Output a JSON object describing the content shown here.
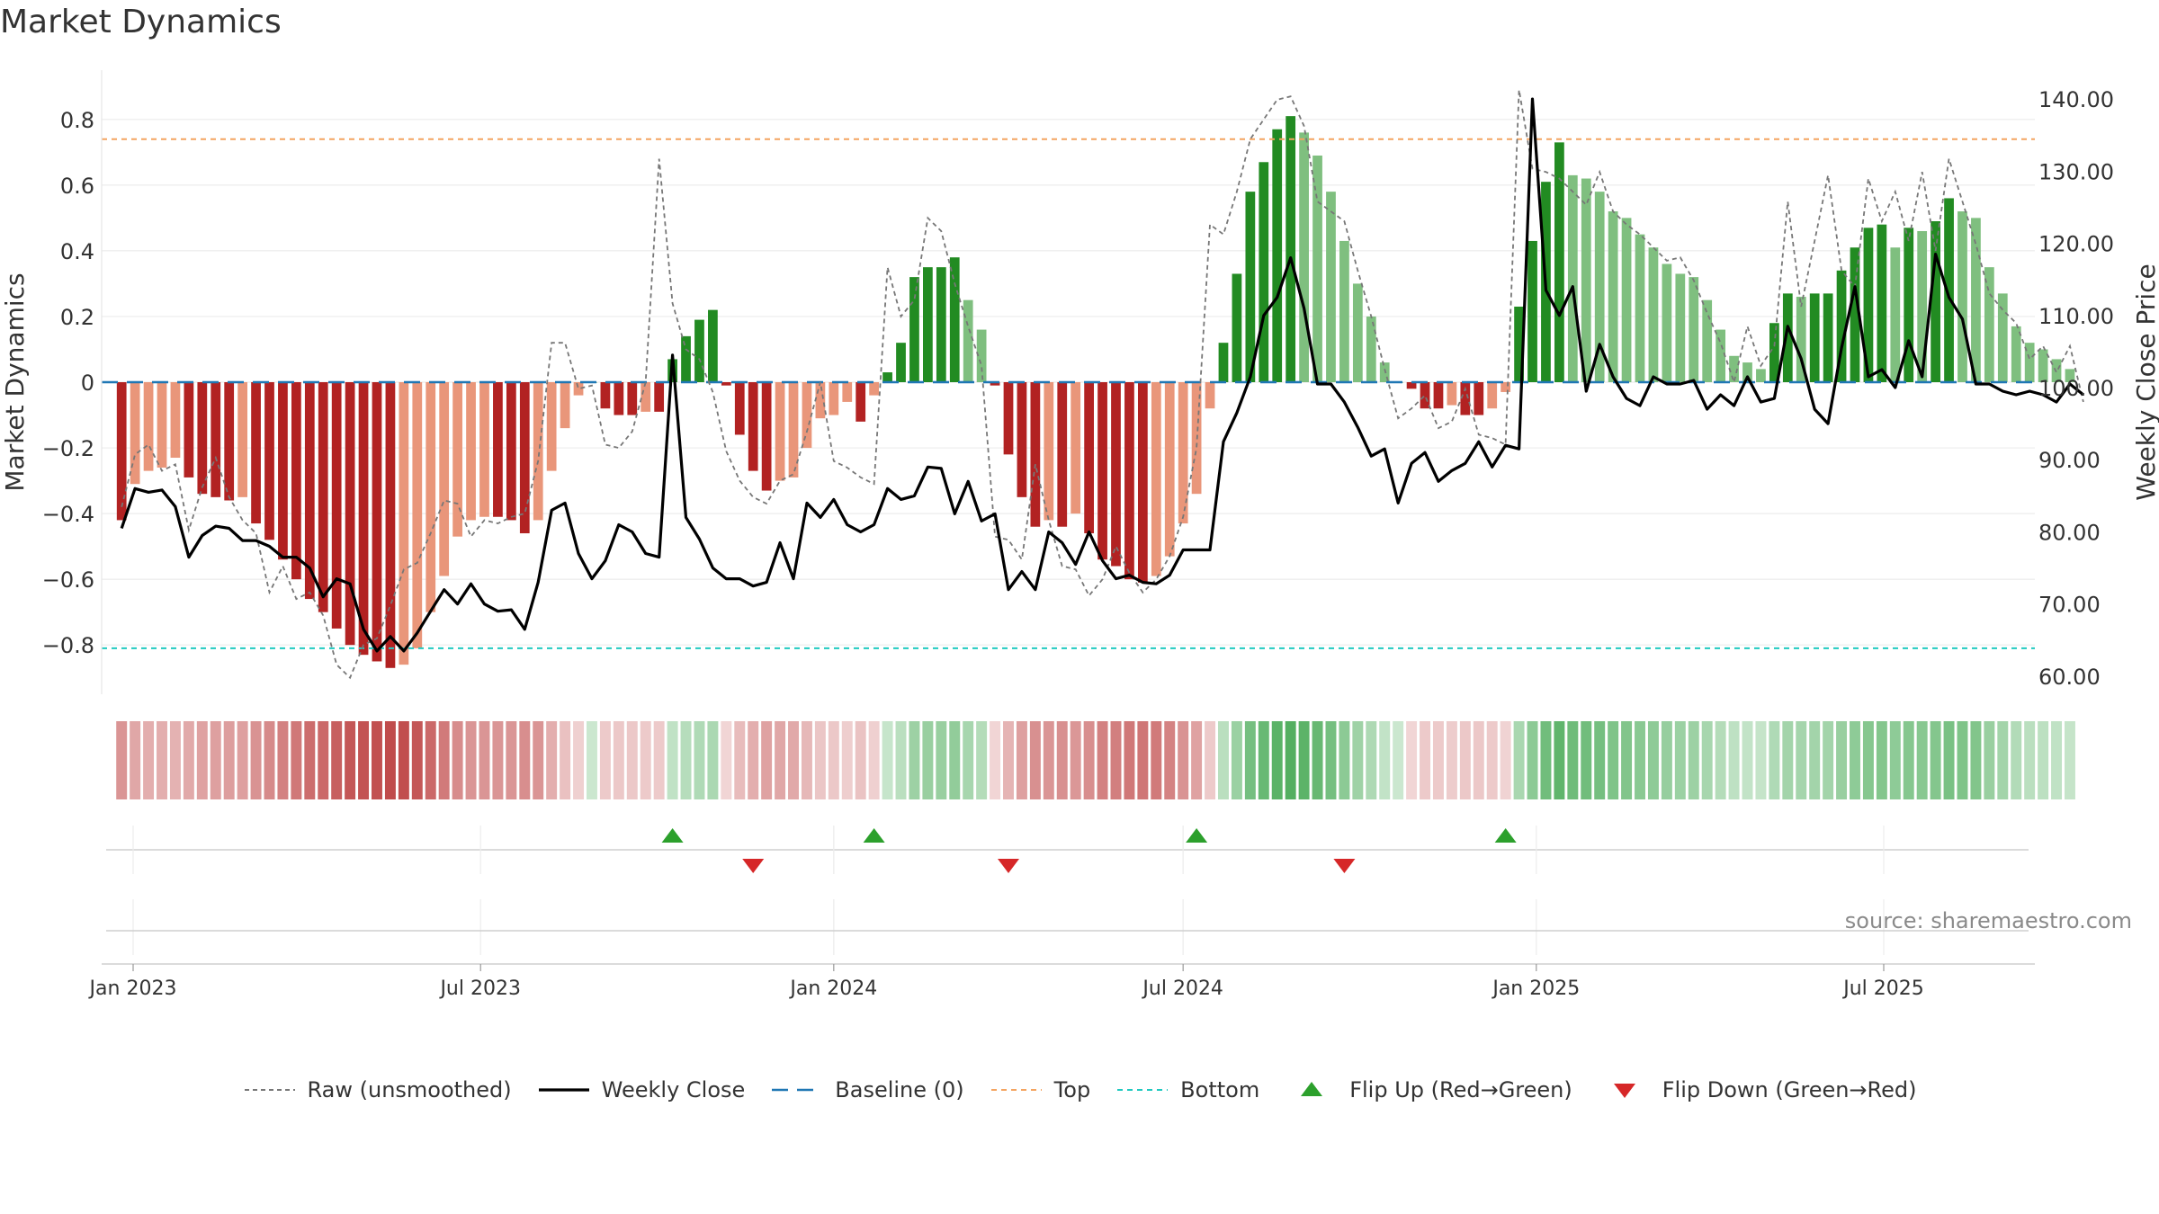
{
  "title": "Market Dynamics",
  "source": "source: sharemaestro.com",
  "chart_data": {
    "type": "bar",
    "title": "Market Dynamics",
    "ylabel": "Market Dynamics",
    "y2label": "Weekly Close Price",
    "ylim": [
      -0.95,
      0.95
    ],
    "y2lim": [
      57.5,
      144.0
    ],
    "yticks": [
      "0.8",
      "0.6",
      "0.4",
      "0.2",
      "0",
      "−0.2",
      "−0.4",
      "−0.6",
      "−0.8"
    ],
    "y2ticks": [
      "140.00",
      "130.00",
      "120.00",
      "110.00",
      "100.00",
      "90.00",
      "80.00",
      "70.00",
      "60.00"
    ],
    "xticks": [
      "Jan 2023",
      "Jul 2023",
      "Jan 2024",
      "Jul 2024",
      "Jan 2025",
      "Jul 2025"
    ],
    "top_line": 0.74,
    "bottom_line": -0.81,
    "baseline": 0,
    "start_date": "2022-12-26",
    "bar_values": [
      -0.42,
      -0.31,
      -0.27,
      -0.26,
      -0.23,
      -0.29,
      -0.34,
      -0.35,
      -0.36,
      -0.35,
      -0.43,
      -0.48,
      -0.54,
      -0.6,
      -0.66,
      -0.7,
      -0.75,
      -0.8,
      -0.83,
      -0.85,
      -0.87,
      -0.86,
      -0.81,
      -0.7,
      -0.59,
      -0.47,
      -0.42,
      -0.41,
      -0.41,
      -0.42,
      -0.46,
      -0.42,
      -0.27,
      -0.14,
      -0.04,
      0,
      -0.08,
      -0.1,
      -0.1,
      -0.09,
      -0.09,
      0.07,
      0.14,
      0.19,
      0.22,
      -0.01,
      -0.16,
      -0.27,
      -0.33,
      -0.3,
      -0.29,
      -0.2,
      -0.11,
      -0.1,
      -0.06,
      -0.12,
      -0.04,
      0.03,
      0.12,
      0.32,
      0.35,
      0.35,
      0.38,
      0.25,
      0.16,
      -0.01,
      -0.22,
      -0.35,
      -0.44,
      -0.42,
      -0.44,
      -0.4,
      -0.46,
      -0.54,
      -0.56,
      -0.6,
      -0.61,
      -0.59,
      -0.53,
      -0.43,
      -0.34,
      -0.08,
      0.12,
      0.33,
      0.58,
      0.67,
      0.77,
      0.81,
      0.76,
      0.69,
      0.58,
      0.43,
      0.3,
      0.2,
      0.06,
      0.0,
      -0.02,
      -0.08,
      -0.08,
      -0.07,
      -0.1,
      -0.1,
      -0.08,
      -0.03,
      0.23,
      0.43,
      0.61,
      0.73,
      0.63,
      0.62,
      0.58,
      0.52,
      0.5,
      0.45,
      0.41,
      0.36,
      0.33,
      0.32,
      0.25,
      0.16,
      0.08,
      0.06,
      0.04,
      0.18,
      0.27,
      0.26,
      0.27,
      0.27,
      0.34,
      0.41,
      0.47,
      0.48,
      0.41,
      0.47,
      0.46,
      0.49,
      0.56,
      0.52,
      0.5,
      0.35,
      0.27,
      0.17,
      0.12,
      0.1,
      0.07,
      0.04
    ],
    "raw_values": [
      -0.38,
      -0.22,
      -0.19,
      -0.27,
      -0.25,
      -0.45,
      -0.32,
      -0.23,
      -0.35,
      -0.42,
      -0.46,
      -0.64,
      -0.56,
      -0.66,
      -0.64,
      -0.71,
      -0.86,
      -0.9,
      -0.8,
      -0.78,
      -0.68,
      -0.57,
      -0.55,
      -0.46,
      -0.36,
      -0.37,
      -0.47,
      -0.42,
      -0.43,
      -0.41,
      -0.4,
      -0.24,
      0.12,
      0.12,
      -0.02,
      -0.01,
      -0.19,
      -0.2,
      -0.15,
      0.0,
      0.68,
      0.24,
      0.1,
      0.07,
      -0.03,
      -0.21,
      -0.3,
      -0.35,
      -0.37,
      -0.3,
      -0.28,
      -0.15,
      0.0,
      -0.24,
      -0.26,
      -0.29,
      -0.31,
      0.35,
      0.2,
      0.25,
      0.5,
      0.46,
      0.3,
      0.17,
      0.05,
      -0.47,
      -0.48,
      -0.54,
      -0.25,
      -0.42,
      -0.56,
      -0.57,
      -0.65,
      -0.6,
      -0.5,
      -0.58,
      -0.64,
      -0.6,
      -0.53,
      -0.41,
      -0.2,
      0.48,
      0.45,
      0.58,
      0.74,
      0.8,
      0.86,
      0.87,
      0.78,
      0.55,
      0.52,
      0.49,
      0.34,
      0.2,
      0.04,
      -0.11,
      -0.08,
      -0.04,
      -0.14,
      -0.12,
      -0.02,
      -0.16,
      -0.17,
      -0.19,
      0.89,
      0.65,
      0.64,
      0.62,
      0.58,
      0.54,
      0.64,
      0.52,
      0.48,
      0.45,
      0.41,
      0.37,
      0.38,
      0.31,
      0.21,
      0.12,
      0.0,
      0.17,
      0.05,
      0.11,
      0.55,
      0.23,
      0.43,
      0.63,
      0.34,
      0.29,
      0.62,
      0.49,
      0.58,
      0.43,
      0.64,
      0.4,
      0.68,
      0.55,
      0.42,
      0.27,
      0.22,
      0.18,
      0.07,
      0.11,
      0.03,
      0.11,
      -0.06
    ],
    "close_values": [
      80.5,
      86,
      85.5,
      85.8,
      83.5,
      76.5,
      79.5,
      80.8,
      80.5,
      78.8,
      78.8,
      78,
      76.5,
      76.5,
      75,
      71,
      73.5,
      72.8,
      66.5,
      63.5,
      65.5,
      63.5,
      66,
      69,
      72,
      70,
      72.8,
      70,
      69,
      69.2,
      66.5,
      73,
      83,
      84,
      77,
      73.5,
      76,
      81,
      80,
      77,
      76.5,
      104.5,
      82,
      79,
      75,
      73.5,
      73.5,
      72.5,
      73,
      78.5,
      73.5,
      84,
      82,
      84.5,
      81,
      80,
      81,
      86,
      84.5,
      85,
      89,
      88.8,
      82.5,
      87,
      81.5,
      82.5,
      72,
      74.5,
      72,
      80,
      78.5,
      75.5,
      80,
      76,
      73.5,
      74,
      73,
      72.8,
      74,
      77.5,
      77.5,
      77.5,
      92.5,
      96.5,
      101.5,
      110,
      112.5,
      118,
      111,
      100.5,
      100.5,
      98,
      94.5,
      90.5,
      91.5,
      84,
      89.5,
      91,
      87,
      88.5,
      89.5,
      92.5,
      89,
      92,
      91.5,
      140,
      113.5,
      110,
      114,
      99.5,
      106,
      101.5,
      98.5,
      97.5,
      101.5,
      100.5,
      100.5,
      101,
      97,
      99,
      97.5,
      101.5,
      98,
      98.5,
      108.5,
      104,
      97,
      95,
      105.5,
      114,
      101.5,
      102.5,
      100,
      106.5,
      101.5,
      118.5,
      112.5,
      109.5,
      100.5,
      100.5,
      99.5,
      99,
      99.5,
      99,
      98,
      100.5,
      99
    ]
  },
  "flips": {
    "up": [
      "2023-10-09",
      "2024-01-22",
      "2024-07-08",
      "2024-12-16"
    ],
    "down": [
      "2023-11-20",
      "2024-04-01",
      "2024-09-23"
    ]
  },
  "colors": {
    "red_dark": "#b22222",
    "red_light": "#e9967a",
    "green_dark": "#228b22",
    "green_light": "#7fbf7f",
    "raw_line": "#777777",
    "close_line": "#000000",
    "baseline": "#1f77b4",
    "top": "#f4a460",
    "bottom": "#20c9c0",
    "flip_up": "#2ca02c",
    "flip_down": "#d62728"
  },
  "legend": [
    {
      "label": "Raw (unsmoothed)",
      "kind": "raw"
    },
    {
      "label": "Weekly Close",
      "kind": "close"
    },
    {
      "label": "Baseline (0)",
      "kind": "baseline"
    },
    {
      "label": "Top",
      "kind": "top"
    },
    {
      "label": "Bottom",
      "kind": "bottom"
    },
    {
      "label": "Flip Up (Red→Green)",
      "kind": "up"
    },
    {
      "label": "Flip Down (Green→Red)",
      "kind": "down"
    }
  ]
}
